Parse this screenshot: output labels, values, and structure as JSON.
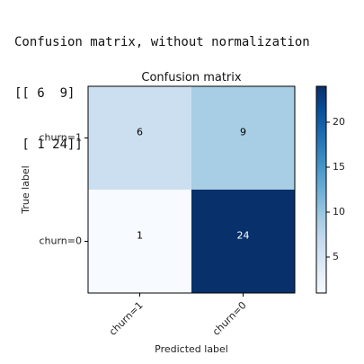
{
  "console": {
    "lines": [
      "Confusion matrix, without normalization",
      "[[ 6  9]",
      " [ 1 24]]"
    ]
  },
  "chart_data": {
    "type": "heatmap",
    "title": "Confusion matrix",
    "xlabel": "Predicted label",
    "ylabel": "True label",
    "x_categories": [
      "churn=1",
      "churn=0"
    ],
    "y_categories": [
      "churn=1",
      "churn=0"
    ],
    "values": [
      [
        6,
        9
      ],
      [
        1,
        24
      ]
    ],
    "colormap": "Blues",
    "colorbar": {
      "min": 1,
      "max": 24,
      "ticks": [
        5,
        10,
        15,
        20
      ]
    },
    "text_color_light": "#ffffff",
    "text_color_dark": "#000000"
  }
}
